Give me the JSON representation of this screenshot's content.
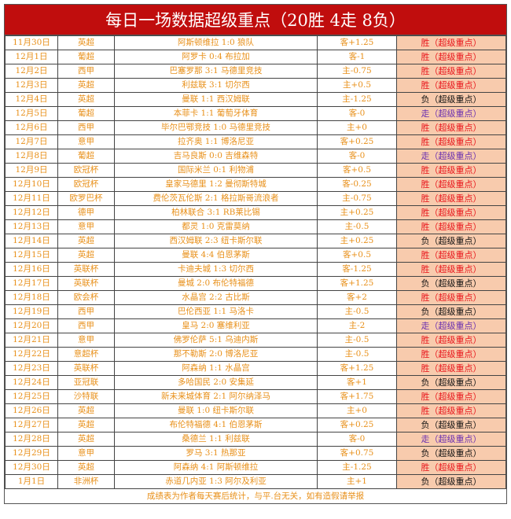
{
  "title": "每日一场数据超级重点（20胜 4走 8负）",
  "colors": {
    "header_bg": "#c00d0d",
    "text": "#e8901a",
    "result_bg": "#f8cbad",
    "win": "#e8141a",
    "loss": "#111111",
    "draw": "#6a2fb0"
  },
  "rows": [
    {
      "date": "11月30日",
      "league": "英超",
      "match": "阿斯顿维拉 1:0 狼队",
      "handicap": "客+1.25",
      "result": "胜（超级重点）",
      "type": "win"
    },
    {
      "date": "12月1日",
      "league": "葡超",
      "match": "阿罗卡 0:4 布拉加",
      "handicap": "客-1",
      "result": "胜（超级重点）",
      "type": "win"
    },
    {
      "date": "12月2日",
      "league": "西甲",
      "match": "巴塞罗那 3:1 马德里竞技",
      "handicap": "主-0.75",
      "result": "胜（超级重点）",
      "type": "win"
    },
    {
      "date": "12月3日",
      "league": "英超",
      "match": "利兹联 3:1 切尔西",
      "handicap": "主+0.5",
      "result": "胜（超级重点）",
      "type": "win"
    },
    {
      "date": "12月4日",
      "league": "英超",
      "match": "曼联 1:1 西汉姆联",
      "handicap": "主-1.25",
      "result": "负（超级重点）",
      "type": "loss"
    },
    {
      "date": "12月5日",
      "league": "葡超",
      "match": "本菲卡 1:1 葡萄牙体育",
      "handicap": "客-0",
      "result": "走（超级重点）",
      "type": "draw"
    },
    {
      "date": "12月6日",
      "league": "西甲",
      "match": "毕尔巴鄂竞技 1:0 马德里竞技",
      "handicap": "主+0",
      "result": "胜（超级重点）",
      "type": "win"
    },
    {
      "date": "12月7日",
      "league": "意甲",
      "match": "拉齐奥 1:1 博洛尼亚",
      "handicap": "客+0.25",
      "result": "胜（超级重点）",
      "type": "win"
    },
    {
      "date": "12月8日",
      "league": "葡超",
      "match": "吉马良斯 0:0 吉维森特",
      "handicap": "客-0",
      "result": "走（超级重点）",
      "type": "draw"
    },
    {
      "date": "12月9日",
      "league": "欧冠杯",
      "match": "国际米兰 0:1 利物浦",
      "handicap": "客+0.5",
      "result": "胜（超级重点）",
      "type": "win"
    },
    {
      "date": "12月10日",
      "league": "欧冠杯",
      "match": "皇家马德里 1:2 曼彻斯特城",
      "handicap": "客-0.25",
      "result": "胜（超级重点）",
      "type": "win"
    },
    {
      "date": "12月11日",
      "league": "欧罗巴杯",
      "match": "费伦茨瓦伦斯 2:1 格拉斯哥流浪者",
      "handicap": "主-0.75",
      "result": "胜（超级重点）",
      "type": "win"
    },
    {
      "date": "12月12日",
      "league": "德甲",
      "match": "柏林联合 3:1 RB莱比锡",
      "handicap": "主+0.25",
      "result": "胜（超级重点）",
      "type": "win"
    },
    {
      "date": "12月13日",
      "league": "意甲",
      "match": "都灵 1:0 克雷莫纳",
      "handicap": "主-0.5",
      "result": "胜（超级重点）",
      "type": "win"
    },
    {
      "date": "12月14日",
      "league": "英超",
      "match": "西汉姆联 2:3 纽卡斯尔联",
      "handicap": "主+0.25",
      "result": "负（超级重点）",
      "type": "loss"
    },
    {
      "date": "12月15日",
      "league": "英超",
      "match": "曼联 4:4 伯恩茅斯",
      "handicap": "客+0.5",
      "result": "胜（超级重点）",
      "type": "win"
    },
    {
      "date": "12月16日",
      "league": "英联杯",
      "match": "卡迪夫城 1:3 切尔西",
      "handicap": "客-1.25",
      "result": "胜（超级重点）",
      "type": "win"
    },
    {
      "date": "12月17日",
      "league": "英联杯",
      "match": "曼城 2:0 布伦特福德",
      "handicap": "客+1.25",
      "result": "负（超级重点）",
      "type": "loss"
    },
    {
      "date": "12月18日",
      "league": "欧会杯",
      "match": "水晶宫 2:2 古比斯",
      "handicap": "客+2",
      "result": "胜（超级重点）",
      "type": "win"
    },
    {
      "date": "12月19日",
      "league": "西甲",
      "match": "巴伦西亚 1:1 马洛卡",
      "handicap": "主-0.5",
      "result": "负（超级重点）",
      "type": "loss"
    },
    {
      "date": "12月20日",
      "league": "西甲",
      "match": "皇马 2:0 塞维利亚",
      "handicap": "主-2",
      "result": "走（超级重点）",
      "type": "draw"
    },
    {
      "date": "12月21日",
      "league": "意甲",
      "match": "佛罗伦萨 5:1 乌迪内斯",
      "handicap": "主-0.5",
      "result": "胜（超级重点）",
      "type": "win"
    },
    {
      "date": "12月22日",
      "league": "意超杯",
      "match": "那不勒斯 2:0 博洛尼亚",
      "handicap": "主-0.5",
      "result": "胜（超级重点）",
      "type": "win"
    },
    {
      "date": "12月23日",
      "league": "英联杯",
      "match": "阿森纳 1:1 水晶宫",
      "handicap": "客+1.25",
      "result": "胜（超级重点）",
      "type": "win"
    },
    {
      "date": "12月24日",
      "league": "亚冠联",
      "match": "多哈国民 2:0 安集延",
      "handicap": "客+1",
      "result": "负（超级重点）",
      "type": "loss"
    },
    {
      "date": "12月25日",
      "league": "沙特联",
      "match": "新未来城体育 2:1 阿尔纳泽马",
      "handicap": "客+1.75",
      "result": "胜（超级重点）",
      "type": "win"
    },
    {
      "date": "12月26日",
      "league": "英超",
      "match": "曼联 1:0 纽卡斯尔联",
      "handicap": "主+0",
      "result": "胜（超级重点）",
      "type": "win"
    },
    {
      "date": "12月27日",
      "league": "英超",
      "match": "布伦特福德 4:1 伯恩茅斯",
      "handicap": "客+0.25",
      "result": "负（超级重点）",
      "type": "loss"
    },
    {
      "date": "12月28日",
      "league": "英超",
      "match": "桑德兰 1:1 利兹联",
      "handicap": "客-0",
      "result": "走（超级重点）",
      "type": "draw"
    },
    {
      "date": "12月29日",
      "league": "意甲",
      "match": "罗马 3:1 热那亚",
      "handicap": "客+0.75",
      "result": "负（超级重点）",
      "type": "loss"
    },
    {
      "date": "12月30日",
      "league": "英超",
      "match": "阿森纳 4:1 阿斯顿维拉",
      "handicap": "主-1.25",
      "result": "胜（超级重点）",
      "type": "win"
    },
    {
      "date": "1月1日",
      "league": "非洲杯",
      "match": "赤道几内亚 1:3 阿尔及利亚",
      "handicap": "主+1",
      "result": "负（超级重点）",
      "type": "loss"
    }
  ],
  "footer": "成绩表为作者每天赛后统计，与平.台无关，如有造假请举报"
}
